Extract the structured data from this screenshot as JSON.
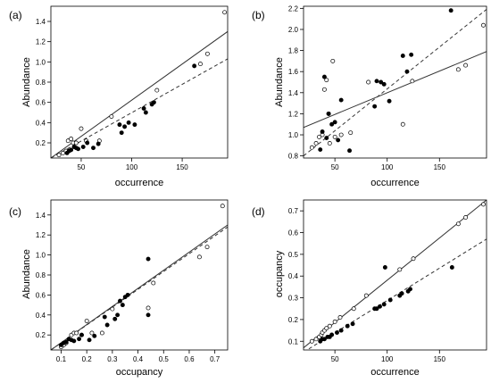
{
  "chart_data": [
    {
      "panel": "(a)",
      "type": "scatter",
      "xlabel": "occurrence",
      "ylabel": "Abundance",
      "xlim": [
        20,
        195
      ],
      "ylim": [
        0.05,
        1.55
      ],
      "xticks": [
        "50",
        "100",
        "150"
      ],
      "xtick_values": [
        50,
        100,
        150
      ],
      "yticks": [
        "0.2",
        "0.4",
        "0.6",
        "0.8",
        "1.0",
        "1.2",
        "1.4"
      ],
      "ytick_values": [
        0.2,
        0.4,
        0.6,
        0.8,
        1.0,
        1.2,
        1.4
      ],
      "series": [
        {
          "marker": "open",
          "points": [
            [
              28,
              0.08
            ],
            [
              32,
              0.1
            ],
            [
              35,
              0.12
            ],
            [
              37,
              0.22
            ],
            [
              38,
              0.12
            ],
            [
              40,
              0.24
            ],
            [
              42,
              0.2
            ],
            [
              45,
              0.2
            ],
            [
              50,
              0.34
            ],
            [
              55,
              0.22
            ],
            [
              68,
              0.22
            ],
            [
              80,
              0.46
            ],
            [
              125,
              0.72
            ],
            [
              168,
              0.98
            ],
            [
              175,
              1.08
            ],
            [
              192,
              1.49
            ]
          ]
        },
        {
          "marker": "filled",
          "points": [
            [
              36,
              0.1
            ],
            [
              38,
              0.12
            ],
            [
              40,
              0.13
            ],
            [
              43,
              0.16
            ],
            [
              45,
              0.15
            ],
            [
              47,
              0.14
            ],
            [
              52,
              0.16
            ],
            [
              56,
              0.2
            ],
            [
              62,
              0.15
            ],
            [
              67,
              0.19
            ],
            [
              88,
              0.38
            ],
            [
              90,
              0.3
            ],
            [
              93,
              0.36
            ],
            [
              97,
              0.4
            ],
            [
              103,
              0.38
            ],
            [
              112,
              0.54
            ],
            [
              114,
              0.5
            ],
            [
              120,
              0.58
            ],
            [
              122,
              0.6
            ],
            [
              162,
              0.96
            ]
          ]
        }
      ],
      "lines": [
        {
          "style": "solid",
          "from": [
            20,
            0.05
          ],
          "to": [
            195,
            1.3
          ]
        },
        {
          "style": "dashed",
          "from": [
            20,
            0.05
          ],
          "to": [
            195,
            1.03
          ]
        }
      ]
    },
    {
      "panel": "(b)",
      "type": "scatter",
      "xlabel": "occurrence",
      "ylabel": "Abundance",
      "xlim": [
        20,
        195
      ],
      "ylim": [
        0.78,
        2.22
      ],
      "xticks": [
        "50",
        "100",
        "150"
      ],
      "xtick_values": [
        50,
        100,
        150
      ],
      "yticks": [
        "0.8",
        "1.0",
        "1.2",
        "1.4",
        "1.6",
        "1.8",
        "2.0",
        "2.2"
      ],
      "ytick_values": [
        0.8,
        1.0,
        1.2,
        1.4,
        1.6,
        1.8,
        2.0,
        2.2
      ],
      "series": [
        {
          "marker": "open",
          "points": [
            [
              28,
              0.88
            ],
            [
              32,
              0.92
            ],
            [
              35,
              0.98
            ],
            [
              38,
              1.0
            ],
            [
              40,
              1.43
            ],
            [
              42,
              1.52
            ],
            [
              44,
              1.2
            ],
            [
              45,
              0.92
            ],
            [
              48,
              1.7
            ],
            [
              50,
              0.98
            ],
            [
              56,
              1.0
            ],
            [
              65,
              1.02
            ],
            [
              82,
              1.5
            ],
            [
              115,
              1.1
            ],
            [
              124,
              1.51
            ],
            [
              168,
              1.62
            ],
            [
              175,
              1.66
            ],
            [
              192,
              2.04
            ]
          ]
        },
        {
          "marker": "filled",
          "points": [
            [
              36,
              0.86
            ],
            [
              38,
              1.03
            ],
            [
              40,
              1.55
            ],
            [
              42,
              0.97
            ],
            [
              44,
              1.2
            ],
            [
              47,
              1.1
            ],
            [
              50,
              1.12
            ],
            [
              53,
              0.95
            ],
            [
              56,
              1.33
            ],
            [
              64,
              0.85
            ],
            [
              88,
              1.27
            ],
            [
              90,
              1.51
            ],
            [
              94,
              1.5
            ],
            [
              97,
              1.48
            ],
            [
              102,
              1.32
            ],
            [
              115,
              1.75
            ],
            [
              119,
              1.6
            ],
            [
              123,
              1.76
            ],
            [
              161,
              2.18
            ]
          ]
        }
      ],
      "lines": [
        {
          "style": "solid",
          "from": [
            20,
            1.07
          ],
          "to": [
            195,
            1.79
          ]
        },
        {
          "style": "dashed",
          "from": [
            20,
            0.8
          ],
          "to": [
            195,
            2.19
          ]
        }
      ]
    },
    {
      "panel": "(c)",
      "type": "scatter",
      "xlabel": "occupancy",
      "ylabel": "Abundance",
      "xlim": [
        0.06,
        0.75
      ],
      "ylim": [
        0.05,
        1.55
      ],
      "xticks": [
        "0.1",
        "0.2",
        "0.3",
        "0.4",
        "0.5",
        "0.6",
        "0.7"
      ],
      "xtick_values": [
        0.1,
        0.2,
        0.3,
        0.4,
        0.5,
        0.6,
        0.7
      ],
      "yticks": [
        "0.2",
        "0.4",
        "0.6",
        "0.8",
        "1.0",
        "1.2",
        "1.4"
      ],
      "ytick_values": [
        0.2,
        0.4,
        0.6,
        0.8,
        1.0,
        1.2,
        1.4
      ],
      "series": [
        {
          "marker": "open",
          "points": [
            [
              0.1,
              0.08
            ],
            [
              0.11,
              0.1
            ],
            [
              0.12,
              0.12
            ],
            [
              0.14,
              0.2
            ],
            [
              0.15,
              0.22
            ],
            [
              0.16,
              0.22
            ],
            [
              0.18,
              0.2
            ],
            [
              0.2,
              0.34
            ],
            [
              0.22,
              0.22
            ],
            [
              0.26,
              0.22
            ],
            [
              0.3,
              0.46
            ],
            [
              0.44,
              0.47
            ],
            [
              0.46,
              0.72
            ],
            [
              0.64,
              0.98
            ],
            [
              0.67,
              1.08
            ],
            [
              0.73,
              1.49
            ]
          ]
        },
        {
          "marker": "filled",
          "points": [
            [
              0.1,
              0.1
            ],
            [
              0.11,
              0.12
            ],
            [
              0.12,
              0.13
            ],
            [
              0.13,
              0.16
            ],
            [
              0.14,
              0.15
            ],
            [
              0.15,
              0.14
            ],
            [
              0.17,
              0.16
            ],
            [
              0.18,
              0.2
            ],
            [
              0.21,
              0.15
            ],
            [
              0.23,
              0.19
            ],
            [
              0.27,
              0.38
            ],
            [
              0.28,
              0.3
            ],
            [
              0.31,
              0.36
            ],
            [
              0.32,
              0.4
            ],
            [
              0.33,
              0.54
            ],
            [
              0.34,
              0.5
            ],
            [
              0.35,
              0.58
            ],
            [
              0.36,
              0.6
            ],
            [
              0.44,
              0.96
            ],
            [
              0.44,
              0.4
            ]
          ]
        }
      ],
      "lines": [
        {
          "style": "solid",
          "from": [
            0.06,
            0.05
          ],
          "to": [
            0.75,
            1.3
          ]
        },
        {
          "style": "dashed",
          "from": [
            0.06,
            0.05
          ],
          "to": [
            0.75,
            1.28
          ]
        }
      ]
    },
    {
      "panel": "(d)",
      "type": "scatter",
      "xlabel": "occurrence",
      "ylabel": "occupancy",
      "xlim": [
        20,
        195
      ],
      "ylim": [
        0.06,
        0.75
      ],
      "xticks": [
        "50",
        "100",
        "150"
      ],
      "xtick_values": [
        50,
        100,
        150
      ],
      "yticks": [
        "0.1",
        "0.2",
        "0.3",
        "0.4",
        "0.5",
        "0.6",
        "0.7"
      ],
      "ytick_values": [
        0.1,
        0.2,
        0.3,
        0.4,
        0.5,
        0.6,
        0.7
      ],
      "series": [
        {
          "marker": "open",
          "points": [
            [
              28,
              0.1
            ],
            [
              32,
              0.11
            ],
            [
              35,
              0.12
            ],
            [
              37,
              0.13
            ],
            [
              38,
              0.14
            ],
            [
              40,
              0.15
            ],
            [
              42,
              0.16
            ],
            [
              45,
              0.17
            ],
            [
              50,
              0.19
            ],
            [
              55,
              0.21
            ],
            [
              68,
              0.25
            ],
            [
              80,
              0.31
            ],
            [
              112,
              0.43
            ],
            [
              125,
              0.48
            ],
            [
              168,
              0.64
            ],
            [
              175,
              0.67
            ],
            [
              192,
              0.73
            ]
          ]
        },
        {
          "marker": "filled",
          "points": [
            [
              36,
              0.1
            ],
            [
              38,
              0.11
            ],
            [
              40,
              0.11
            ],
            [
              43,
              0.12
            ],
            [
              45,
              0.12
            ],
            [
              47,
              0.13
            ],
            [
              52,
              0.14
            ],
            [
              56,
              0.15
            ],
            [
              62,
              0.17
            ],
            [
              67,
              0.18
            ],
            [
              88,
              0.25
            ],
            [
              90,
              0.25
            ],
            [
              93,
              0.26
            ],
            [
              97,
              0.27
            ],
            [
              98,
              0.44
            ],
            [
              103,
              0.29
            ],
            [
              112,
              0.31
            ],
            [
              114,
              0.32
            ],
            [
              120,
              0.33
            ],
            [
              122,
              0.34
            ],
            [
              162,
              0.44
            ]
          ]
        }
      ],
      "lines": [
        {
          "style": "solid",
          "from": [
            20,
            0.07
          ],
          "to": [
            195,
            0.75
          ]
        },
        {
          "style": "dashed",
          "from": [
            20,
            0.05
          ],
          "to": [
            195,
            0.57
          ]
        }
      ]
    }
  ]
}
